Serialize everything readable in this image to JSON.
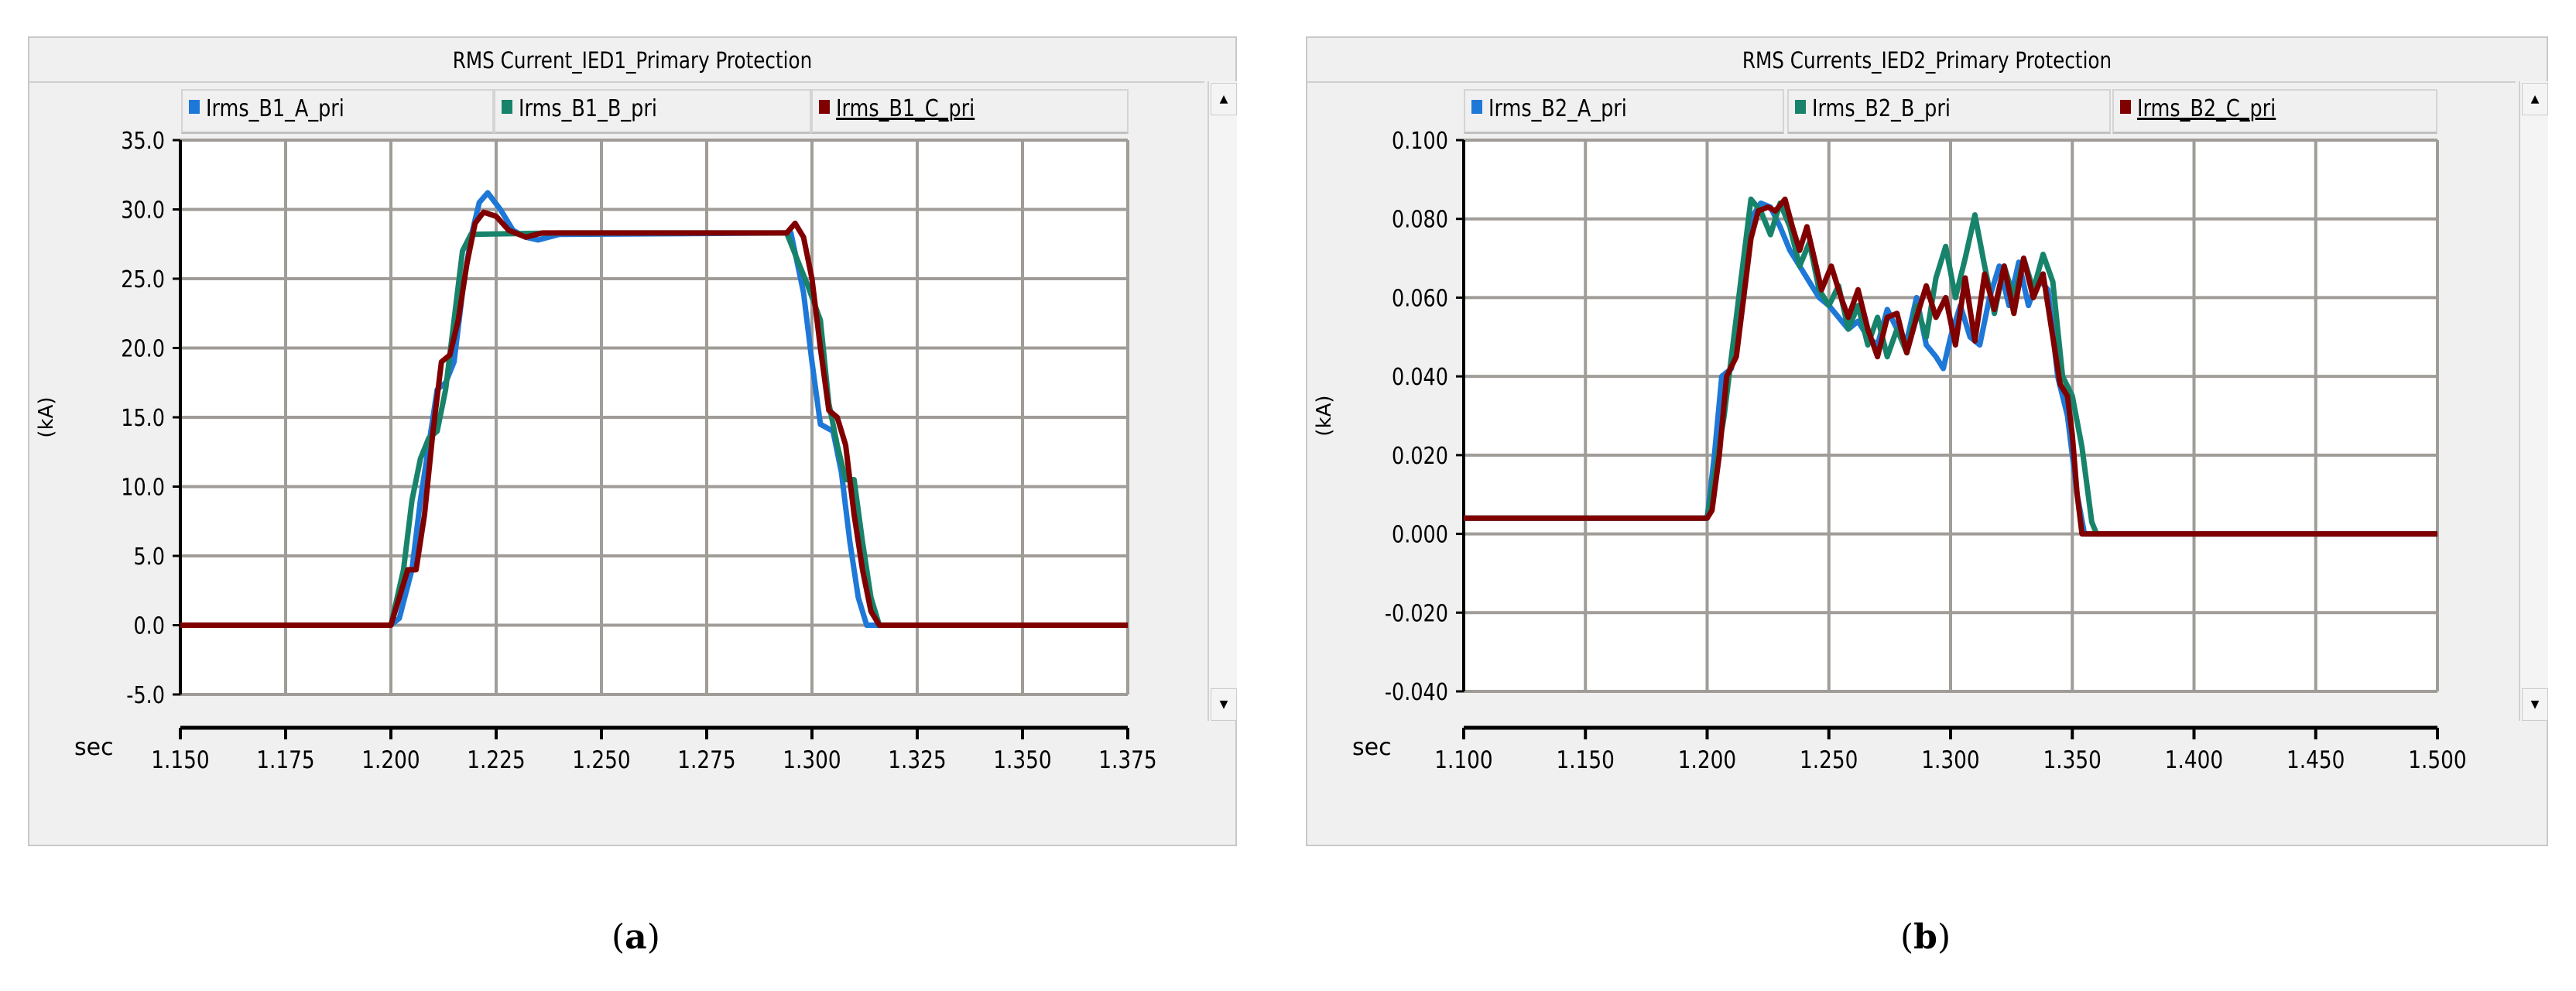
{
  "panels": [
    {
      "title": "RMS Current_IED1_Primary Protection",
      "caption_letter": "a",
      "legend": [
        {
          "label": "Irms_B1_A_pri",
          "color": "#1e78d8"
        },
        {
          "label": "Irms_B1_B_pri",
          "color": "#17836a"
        },
        {
          "label": "Irms_B1_C_pri",
          "color": "#800000"
        }
      ],
      "scroll_up": "▲",
      "scroll_down": "▼"
    },
    {
      "title": "RMS Currents_IED2_Primary Protection",
      "caption_letter": "b",
      "legend": [
        {
          "label": "Irms_B2_A_pri",
          "color": "#1e78d8"
        },
        {
          "label": "Irms_B2_B_pri",
          "color": "#17836a"
        },
        {
          "label": "Irms_B2_C_pri",
          "color": "#800000"
        }
      ],
      "scroll_up": "▲",
      "scroll_down": "▼"
    }
  ],
  "chart_data": [
    {
      "type": "line",
      "title": "RMS Current_IED1_Primary Protection",
      "xlabel": "sec",
      "ylabel": "(kA)",
      "xlim": [
        1.15,
        1.375
      ],
      "ylim": [
        -5,
        35
      ],
      "xticks": [
        "1.150",
        "1.175",
        "1.200",
        "1.225",
        "1.250",
        "1.275",
        "1.300",
        "1.325",
        "1.350",
        "1.375"
      ],
      "yticks": [
        "-5.0",
        "0.0",
        "5.0",
        "10.0",
        "15.0",
        "20.0",
        "25.0",
        "30.0",
        "35.0"
      ],
      "grid": true,
      "legend_position": "top",
      "series": [
        {
          "name": "Irms_B1_A_pri",
          "color": "#1e78d8",
          "points": [
            [
              1.15,
              0
            ],
            [
              1.2,
              0
            ],
            [
              1.202,
              0.5
            ],
            [
              1.205,
              4
            ],
            [
              1.207,
              9
            ],
            [
              1.209,
              13
            ],
            [
              1.211,
              17
            ],
            [
              1.213,
              17.5
            ],
            [
              1.215,
              19
            ],
            [
              1.217,
              24
            ],
            [
              1.219,
              28
            ],
            [
              1.221,
              30.5
            ],
            [
              1.223,
              31.2
            ],
            [
              1.226,
              30
            ],
            [
              1.229,
              28.5
            ],
            [
              1.232,
              28
            ],
            [
              1.235,
              27.8
            ],
            [
              1.24,
              28.2
            ],
            [
              1.295,
              28.3
            ],
            [
              1.298,
              24
            ],
            [
              1.3,
              19
            ],
            [
              1.302,
              14.5
            ],
            [
              1.305,
              14
            ],
            [
              1.307,
              11
            ],
            [
              1.309,
              6
            ],
            [
              1.311,
              2
            ],
            [
              1.313,
              0
            ],
            [
              1.375,
              0
            ]
          ]
        },
        {
          "name": "Irms_B1_B_pri",
          "color": "#17836a",
          "points": [
            [
              1.15,
              0
            ],
            [
              1.2,
              0
            ],
            [
              1.203,
              4
            ],
            [
              1.205,
              9
            ],
            [
              1.207,
              12
            ],
            [
              1.209,
              13.5
            ],
            [
              1.211,
              14
            ],
            [
              1.213,
              17
            ],
            [
              1.215,
              22
            ],
            [
              1.217,
              27
            ],
            [
              1.219,
              28.2
            ],
            [
              1.24,
              28.3
            ],
            [
              1.294,
              28.3
            ],
            [
              1.297,
              26
            ],
            [
              1.299,
              24.5
            ],
            [
              1.302,
              22
            ],
            [
              1.304,
              16
            ],
            [
              1.306,
              13
            ],
            [
              1.308,
              10.5
            ],
            [
              1.31,
              10.5
            ],
            [
              1.312,
              6
            ],
            [
              1.314,
              2
            ],
            [
              1.316,
              0
            ],
            [
              1.375,
              0
            ]
          ]
        },
        {
          "name": "Irms_B1_C_pri",
          "color": "#800000",
          "points": [
            [
              1.15,
              0
            ],
            [
              1.2,
              0
            ],
            [
              1.202,
              2
            ],
            [
              1.204,
              4
            ],
            [
              1.206,
              4
            ],
            [
              1.208,
              8
            ],
            [
              1.21,
              14
            ],
            [
              1.212,
              19
            ],
            [
              1.214,
              19.5
            ],
            [
              1.216,
              22
            ],
            [
              1.218,
              26
            ],
            [
              1.22,
              29
            ],
            [
              1.222,
              29.8
            ],
            [
              1.225,
              29.5
            ],
            [
              1.228,
              28.5
            ],
            [
              1.232,
              28
            ],
            [
              1.236,
              28.3
            ],
            [
              1.294,
              28.3
            ],
            [
              1.296,
              29
            ],
            [
              1.298,
              28
            ],
            [
              1.3,
              25
            ],
            [
              1.302,
              20
            ],
            [
              1.304,
              15.5
            ],
            [
              1.306,
              15
            ],
            [
              1.308,
              13
            ],
            [
              1.31,
              8
            ],
            [
              1.312,
              4
            ],
            [
              1.314,
              1
            ],
            [
              1.316,
              0
            ],
            [
              1.375,
              0
            ]
          ]
        }
      ]
    },
    {
      "type": "line",
      "title": "RMS Currents_IED2_Primary Protection",
      "xlabel": "sec",
      "ylabel": "(kA)",
      "xlim": [
        1.1,
        1.5
      ],
      "ylim": [
        -0.04,
        0.1
      ],
      "xticks": [
        "1.100",
        "1.150",
        "1.200",
        "1.250",
        "1.300",
        "1.350",
        "1.400",
        "1.450",
        "1.500"
      ],
      "yticks": [
        "-0.040",
        "-0.020",
        "0.000",
        "0.020",
        "0.040",
        "0.060",
        "0.080",
        "0.100"
      ],
      "grid": true,
      "legend_position": "top",
      "series": [
        {
          "name": "Irms_B2_A_pri",
          "color": "#1e78d8",
          "points": [
            [
              1.1,
              0.004
            ],
            [
              1.2,
              0.004
            ],
            [
              1.203,
              0.02
            ],
            [
              1.206,
              0.04
            ],
            [
              1.21,
              0.042
            ],
            [
              1.214,
              0.065
            ],
            [
              1.218,
              0.08
            ],
            [
              1.222,
              0.084
            ],
            [
              1.226,
              0.083
            ],
            [
              1.23,
              0.078
            ],
            [
              1.234,
              0.072
            ],
            [
              1.238,
              0.068
            ],
            [
              1.242,
              0.064
            ],
            [
              1.246,
              0.06
            ],
            [
              1.25,
              0.058
            ],
            [
              1.254,
              0.055
            ],
            [
              1.258,
              0.052
            ],
            [
              1.262,
              0.054
            ],
            [
              1.266,
              0.05
            ],
            [
              1.27,
              0.048
            ],
            [
              1.274,
              0.057
            ],
            [
              1.278,
              0.052
            ],
            [
              1.282,
              0.049
            ],
            [
              1.286,
              0.06
            ],
            [
              1.29,
              0.048
            ],
            [
              1.294,
              0.045
            ],
            [
              1.297,
              0.042
            ],
            [
              1.3,
              0.05
            ],
            [
              1.304,
              0.058
            ],
            [
              1.308,
              0.05
            ],
            [
              1.312,
              0.048
            ],
            [
              1.316,
              0.06
            ],
            [
              1.32,
              0.068
            ],
            [
              1.324,
              0.058
            ],
            [
              1.328,
              0.069
            ],
            [
              1.332,
              0.058
            ],
            [
              1.336,
              0.065
            ],
            [
              1.34,
              0.062
            ],
            [
              1.344,
              0.04
            ],
            [
              1.348,
              0.03
            ],
            [
              1.352,
              0.01
            ],
            [
              1.355,
              0
            ],
            [
              1.5,
              0
            ]
          ]
        },
        {
          "name": "Irms_B2_B_pri",
          "color": "#17836a",
          "points": [
            [
              1.1,
              0.004
            ],
            [
              1.2,
              0.004
            ],
            [
              1.203,
              0.015
            ],
            [
              1.207,
              0.03
            ],
            [
              1.21,
              0.045
            ],
            [
              1.214,
              0.065
            ],
            [
              1.218,
              0.085
            ],
            [
              1.222,
              0.082
            ],
            [
              1.226,
              0.076
            ],
            [
              1.23,
              0.084
            ],
            [
              1.234,
              0.078
            ],
            [
              1.238,
              0.068
            ],
            [
              1.242,
              0.074
            ],
            [
              1.246,
              0.062
            ],
            [
              1.25,
              0.058
            ],
            [
              1.254,
              0.063
            ],
            [
              1.258,
              0.052
            ],
            [
              1.262,
              0.058
            ],
            [
              1.266,
              0.048
            ],
            [
              1.27,
              0.055
            ],
            [
              1.274,
              0.045
            ],
            [
              1.278,
              0.052
            ],
            [
              1.282,
              0.046
            ],
            [
              1.286,
              0.058
            ],
            [
              1.29,
              0.05
            ],
            [
              1.294,
              0.065
            ],
            [
              1.298,
              0.073
            ],
            [
              1.302,
              0.06
            ],
            [
              1.306,
              0.07
            ],
            [
              1.31,
              0.081
            ],
            [
              1.314,
              0.068
            ],
            [
              1.318,
              0.056
            ],
            [
              1.322,
              0.068
            ],
            [
              1.326,
              0.06
            ],
            [
              1.33,
              0.07
            ],
            [
              1.334,
              0.062
            ],
            [
              1.338,
              0.071
            ],
            [
              1.342,
              0.064
            ],
            [
              1.346,
              0.04
            ],
            [
              1.35,
              0.035
            ],
            [
              1.354,
              0.022
            ],
            [
              1.358,
              0.003
            ],
            [
              1.36,
              0
            ],
            [
              1.5,
              0
            ]
          ]
        },
        {
          "name": "Irms_B2_C_pri",
          "color": "#800000",
          "points": [
            [
              1.1,
              0.004
            ],
            [
              1.2,
              0.004
            ],
            [
              1.202,
              0.006
            ],
            [
              1.205,
              0.02
            ],
            [
              1.208,
              0.04
            ],
            [
              1.212,
              0.045
            ],
            [
              1.215,
              0.06
            ],
            [
              1.218,
              0.075
            ],
            [
              1.221,
              0.082
            ],
            [
              1.225,
              0.083
            ],
            [
              1.228,
              0.082
            ],
            [
              1.232,
              0.085
            ],
            [
              1.235,
              0.078
            ],
            [
              1.238,
              0.072
            ],
            [
              1.241,
              0.078
            ],
            [
              1.244,
              0.07
            ],
            [
              1.247,
              0.062
            ],
            [
              1.251,
              0.068
            ],
            [
              1.255,
              0.06
            ],
            [
              1.258,
              0.055
            ],
            [
              1.262,
              0.062
            ],
            [
              1.266,
              0.052
            ],
            [
              1.27,
              0.045
            ],
            [
              1.274,
              0.055
            ],
            [
              1.278,
              0.056
            ],
            [
              1.282,
              0.046
            ],
            [
              1.286,
              0.055
            ],
            [
              1.29,
              0.063
            ],
            [
              1.294,
              0.055
            ],
            [
              1.298,
              0.06
            ],
            [
              1.302,
              0.048
            ],
            [
              1.306,
              0.065
            ],
            [
              1.31,
              0.049
            ],
            [
              1.314,
              0.066
            ],
            [
              1.318,
              0.057
            ],
            [
              1.322,
              0.068
            ],
            [
              1.326,
              0.056
            ],
            [
              1.33,
              0.07
            ],
            [
              1.334,
              0.06
            ],
            [
              1.338,
              0.066
            ],
            [
              1.342,
              0.05
            ],
            [
              1.345,
              0.038
            ],
            [
              1.348,
              0.035
            ],
            [
              1.35,
              0.025
            ],
            [
              1.352,
              0.01
            ],
            [
              1.354,
              0
            ],
            [
              1.5,
              0
            ]
          ]
        }
      ]
    }
  ]
}
